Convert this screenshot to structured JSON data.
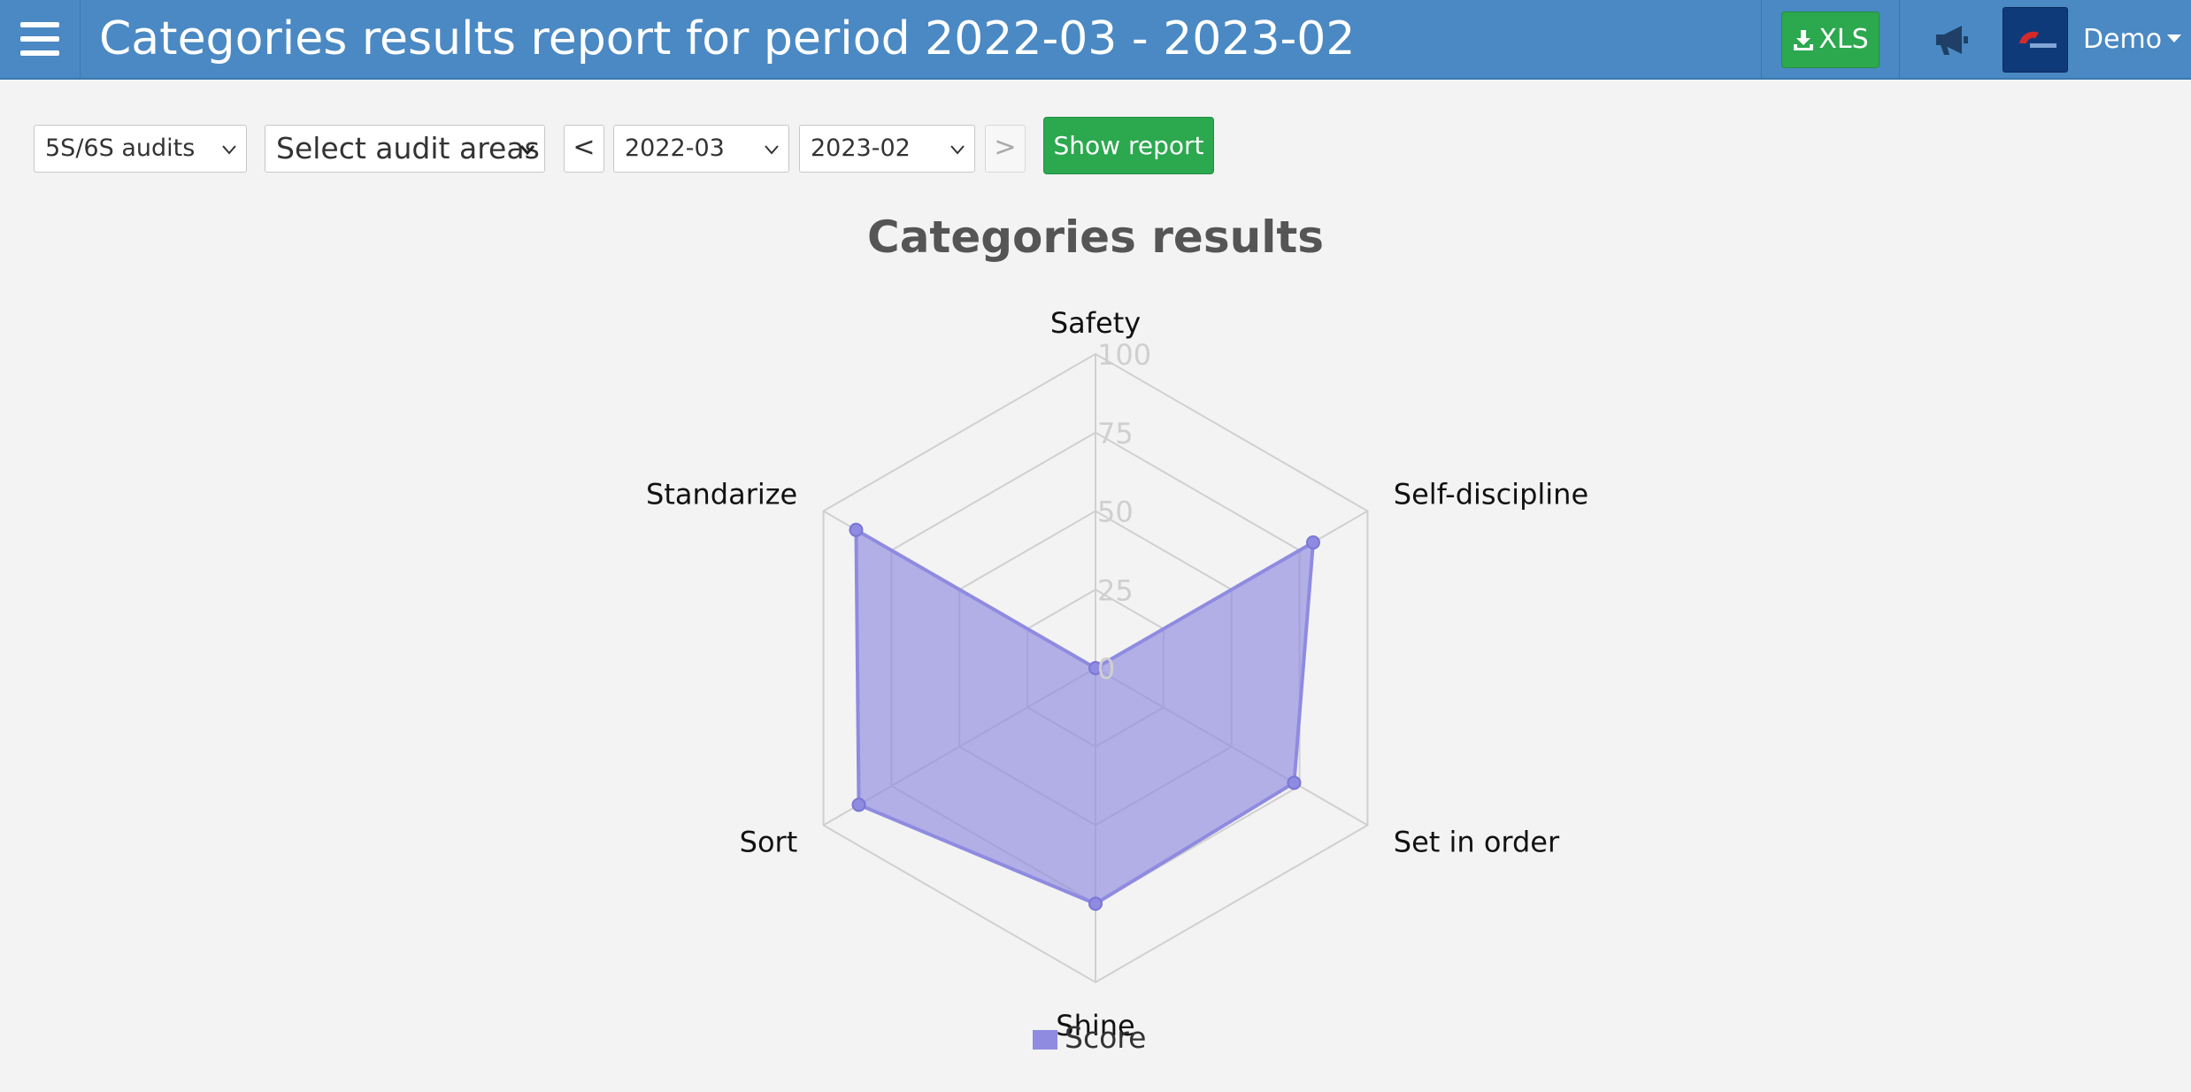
{
  "header": {
    "title": "Categories results report for period 2022-03 - 2023-02",
    "xls_label": "XLS",
    "user_label": "Demo",
    "menu_icon": "hamburger-icon",
    "announce_icon": "megaphone-icon",
    "colors": {
      "bar": "#4a89c3",
      "button": "#2ca84f"
    }
  },
  "filters": {
    "audit_type": "5S/6S audits",
    "audit_areas": "Select audit areas",
    "prev_label": "<",
    "from_period": "2022-03",
    "to_period": "2023-02",
    "next_label": ">",
    "show_report_label": "Show report"
  },
  "chart_data": {
    "type": "radar",
    "title": "Categories results",
    "categories": [
      "Safety",
      "Self-discipline",
      "Set in order",
      "Shine",
      "Sort",
      "Standarize"
    ],
    "radial_ticks": [
      "0",
      "25",
      "50",
      "75",
      "100"
    ],
    "rmax": 100,
    "series": [
      {
        "name": "Score",
        "values": [
          0,
          80,
          73,
          75,
          87,
          88
        ],
        "color": "#8f8be0"
      }
    ],
    "legend_position": "bottom"
  }
}
